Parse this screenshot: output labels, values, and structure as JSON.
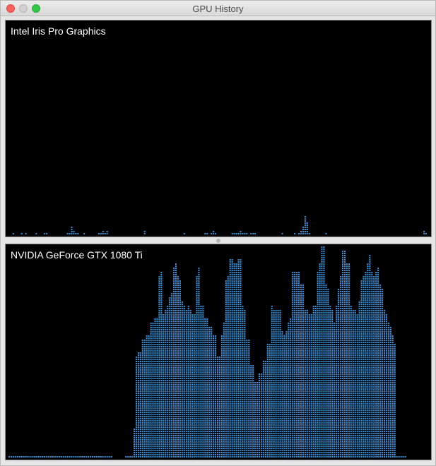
{
  "window": {
    "title": "GPU History"
  },
  "colors": {
    "bar": "#3a8fd6",
    "background": "#000000"
  },
  "top_panel": {
    "gpu_name": "Intel Iris Pro Graphics",
    "levels": [
      0,
      0,
      1,
      0,
      0,
      0,
      1,
      0,
      1,
      0,
      0,
      0,
      0,
      1,
      0,
      0,
      0,
      1,
      1,
      0,
      0,
      0,
      0,
      0,
      0,
      0,
      0,
      0,
      1,
      1,
      4,
      2,
      1,
      1,
      0,
      0,
      1,
      0,
      0,
      0,
      0,
      0,
      0,
      1,
      1,
      2,
      1,
      2,
      0,
      0,
      0,
      0,
      0,
      0,
      0,
      0,
      0,
      0,
      0,
      0,
      0,
      0,
      0,
      0,
      0,
      2,
      0,
      0,
      0,
      0,
      0,
      0,
      0,
      0,
      0,
      0,
      0,
      0,
      0,
      0,
      0,
      0,
      0,
      0,
      1,
      0,
      0,
      0,
      0,
      0,
      0,
      0,
      0,
      0,
      1,
      1,
      0,
      1,
      2,
      1,
      0,
      0,
      0,
      0,
      0,
      0,
      0,
      1,
      1,
      1,
      1,
      2,
      1,
      1,
      1,
      0,
      1,
      1,
      1,
      0,
      0,
      0,
      0,
      0,
      0,
      0,
      0,
      0,
      0,
      0,
      0,
      1,
      0,
      0,
      0,
      0,
      0,
      1,
      0,
      1,
      2,
      4,
      9,
      6,
      1,
      0,
      0,
      0,
      0,
      0,
      0,
      0,
      1,
      0,
      0,
      0,
      0,
      0,
      0,
      0,
      0,
      0,
      0,
      0,
      0,
      0,
      0,
      0,
      0,
      0,
      0,
      0,
      0,
      0,
      0,
      0,
      0,
      0,
      0,
      0,
      0,
      0,
      0,
      0,
      0,
      0,
      0,
      0,
      0,
      0,
      0,
      0,
      0,
      0,
      0,
      0,
      0,
      0,
      0,
      2,
      1,
      0
    ]
  },
  "bottom_panel": {
    "gpu_name": "NVIDIA GeForce GTX 1080 Ti",
    "levels": [
      0,
      1,
      1,
      1,
      1,
      0,
      1,
      0,
      1,
      1,
      0,
      0,
      0,
      1,
      1,
      1,
      0,
      0,
      0,
      0,
      0,
      0,
      1,
      0,
      0,
      1,
      0,
      0,
      0,
      1,
      1,
      1,
      1,
      2,
      1,
      1,
      0,
      0,
      1,
      0,
      0,
      0,
      0,
      0,
      0,
      0,
      1,
      0,
      1,
      1,
      0,
      0,
      0,
      0,
      0,
      0,
      1,
      1,
      1,
      2,
      1,
      1,
      1,
      1,
      1,
      1,
      1,
      1,
      1,
      1,
      1,
      1,
      1,
      1,
      1,
      1,
      1,
      1,
      1,
      1,
      1,
      1,
      1,
      1,
      1,
      1,
      1,
      1,
      1,
      1,
      1,
      1,
      1,
      1,
      1,
      1,
      1,
      1,
      1,
      1,
      1,
      1,
      1,
      1,
      1,
      1,
      1,
      1,
      1,
      1,
      1,
      1,
      1,
      1,
      1,
      1,
      1,
      1,
      1,
      1,
      1,
      1,
      1,
      1,
      1,
      1,
      1,
      1,
      1,
      1,
      1,
      1,
      1,
      1,
      1,
      1,
      1,
      1,
      1,
      1,
      1,
      1,
      1,
      1,
      1,
      1,
      1,
      1,
      1,
      1,
      1,
      1,
      1,
      1,
      1,
      1,
      1,
      1,
      1,
      1,
      1,
      1,
      1,
      1,
      1,
      1,
      1,
      1,
      1,
      1,
      1,
      1,
      1,
      1,
      1,
      1,
      1,
      1,
      1,
      1,
      1,
      1,
      1,
      1,
      1,
      1,
      1,
      1,
      1,
      1,
      1,
      0,
      0,
      0,
      0,
      0,
      0,
      0,
      0,
      0,
      0,
      0,
      0,
      0,
      0,
      0,
      0,
      0,
      0,
      0,
      1,
      1,
      1,
      1,
      1,
      0
    ],
    "heights": [
      1,
      1,
      1,
      1,
      1,
      1,
      1,
      1,
      1,
      1,
      1,
      1,
      1,
      1,
      1,
      1,
      1,
      1,
      1,
      1,
      1,
      1,
      1,
      1,
      1,
      1,
      1,
      1,
      1,
      1,
      1,
      1,
      1,
      1,
      1,
      1,
      1,
      1,
      1,
      1,
      1,
      1,
      1,
      1,
      1,
      1,
      1,
      1,
      1,
      1,
      0,
      0,
      0,
      0,
      0,
      0,
      1,
      1,
      1,
      1,
      14,
      48,
      50,
      50,
      56,
      56,
      58,
      58,
      64,
      64,
      66,
      66,
      86,
      88,
      68,
      70,
      72,
      76,
      78,
      90,
      92,
      86,
      84,
      74,
      72,
      70,
      72,
      70,
      68,
      68,
      86,
      90,
      72,
      72,
      66,
      66,
      62,
      62,
      58,
      58,
      48,
      48,
      58,
      64,
      84,
      86,
      94,
      94,
      92,
      92,
      94,
      94,
      72,
      70,
      56,
      56,
      44,
      44,
      36,
      36,
      40,
      40,
      46,
      46,
      54,
      54,
      72,
      70,
      70,
      70,
      70,
      60,
      58,
      60,
      64,
      66,
      88,
      88,
      88,
      88,
      82,
      82,
      70,
      70,
      68,
      68,
      72,
      72,
      88,
      92,
      100,
      100,
      82,
      80,
      72,
      70,
      64,
      72,
      80,
      86,
      98,
      98,
      92,
      92,
      72,
      70,
      70,
      68,
      74,
      84,
      86,
      88,
      92,
      96,
      88,
      86,
      88,
      90,
      82,
      80,
      70,
      68,
      64,
      62,
      58,
      54,
      0,
      0,
      0,
      0,
      0,
      0,
      0,
      0,
      0,
      0,
      0,
      0,
      0,
      0,
      0,
      0,
      0,
      0,
      0,
      0,
      0,
      0,
      0,
      0,
      0,
      0,
      0,
      0,
      0
    ]
  }
}
